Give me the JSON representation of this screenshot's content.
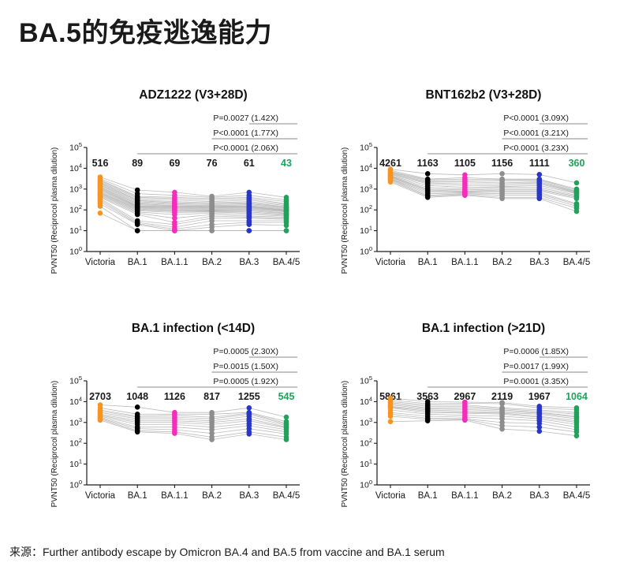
{
  "page": {
    "title": "BA.5的免疫逃逸能力",
    "source_note": "来源：Further antibody escape by Omicron BA.4 and BA.5 from vaccine and BA.1 serum"
  },
  "chart_config": {
    "categories": [
      "Victoria",
      "BA.1",
      "BA.1.1",
      "BA.2",
      "BA.3",
      "BA.4/5"
    ],
    "category_colors": [
      "#F8941D",
      "#000000",
      "#F62CBC",
      "#8E8E8E",
      "#2836C9",
      "#21A15B"
    ],
    "ylabel": "PVNT50 (Reciprocol plasma dilution)",
    "yticks": [
      "10^0",
      "10^1",
      "10^2",
      "10^3",
      "10^4",
      "10^5"
    ],
    "yscale": "log10",
    "ylim": [
      1,
      100000
    ],
    "gmt_highlight_color": "#21A15B",
    "gmt_text_color": "#1a1a1a",
    "line_color": "#999999",
    "sig_line_color": "#8A8A8A",
    "axis_color": "#1a1a1a"
  },
  "chart_data": [
    {
      "type": "scatter",
      "subtype": "paired-dot-line",
      "title": "ADZ1222 (V3+28D)",
      "categories": [
        "Victoria",
        "BA.1",
        "BA.1.1",
        "BA.2",
        "BA.3",
        "BA.4/5"
      ],
      "geometric_means": [
        516,
        89,
        69,
        76,
        61,
        43
      ],
      "significance": [
        {
          "label": "P=0.0027 (1.42X)",
          "from": 4,
          "to": 5
        },
        {
          "label": "P<0.0001 (1.77X)",
          "from": 3,
          "to": 5
        },
        {
          "label": "P<0.0001 (2.06X)",
          "from": 1,
          "to": 5
        }
      ],
      "subjects": [
        [
          3800,
          900,
          700,
          450,
          700,
          400
        ],
        [
          3200,
          600,
          500,
          400,
          500,
          300
        ],
        [
          2800,
          450,
          400,
          350,
          400,
          250
        ],
        [
          2500,
          400,
          350,
          300,
          350,
          200
        ],
        [
          2200,
          350,
          300,
          250,
          300,
          180
        ],
        [
          2000,
          300,
          250,
          220,
          250,
          160
        ],
        [
          1800,
          280,
          220,
          200,
          220,
          140
        ],
        [
          1600,
          250,
          200,
          180,
          200,
          130
        ],
        [
          1500,
          220,
          180,
          160,
          180,
          120
        ],
        [
          1300,
          200,
          160,
          150,
          160,
          110
        ],
        [
          1200,
          180,
          150,
          140,
          150,
          100
        ],
        [
          1100,
          160,
          140,
          130,
          140,
          95
        ],
        [
          1000,
          150,
          130,
          120,
          130,
          90
        ],
        [
          900,
          140,
          120,
          110,
          120,
          85
        ],
        [
          800,
          130,
          110,
          100,
          110,
          80
        ],
        [
          700,
          120,
          100,
          95,
          100,
          70
        ],
        [
          650,
          110,
          90,
          90,
          90,
          65
        ],
        [
          600,
          100,
          85,
          85,
          80,
          60
        ],
        [
          550,
          90,
          75,
          80,
          70,
          55
        ],
        [
          500,
          80,
          60,
          70,
          60,
          50
        ],
        [
          450,
          70,
          40,
          60,
          50,
          45
        ],
        [
          400,
          60,
          25,
          50,
          45,
          40
        ],
        [
          350,
          30,
          20,
          40,
          40,
          35
        ],
        [
          300,
          25,
          15,
          30,
          30,
          30
        ],
        [
          250,
          22,
          12,
          20,
          25,
          25
        ],
        [
          200,
          20,
          10,
          15,
          20,
          18
        ],
        [
          150,
          10,
          10,
          10,
          10,
          10
        ],
        [
          70,
          10,
          10,
          10,
          10,
          10
        ]
      ]
    },
    {
      "type": "scatter",
      "subtype": "paired-dot-line",
      "title": "BNT162b2 (V3+28D)",
      "categories": [
        "Victoria",
        "BA.1",
        "BA.1.1",
        "BA.2",
        "BA.3",
        "BA.4/5"
      ],
      "geometric_means": [
        4261,
        1163,
        1105,
        1156,
        1111,
        360
      ],
      "significance": [
        {
          "label": "P<0.0001 (3.09X)",
          "from": 4,
          "to": 5
        },
        {
          "label": "P<0.0001 (3.21X)",
          "from": 3,
          "to": 5
        },
        {
          "label": "P<0.0001 (3.23X)",
          "from": 1,
          "to": 5
        }
      ],
      "subjects": [
        [
          9000,
          5500,
          4800,
          5500,
          5000,
          2000
        ],
        [
          8000,
          3000,
          3500,
          3000,
          3000,
          1000
        ],
        [
          7000,
          2800,
          3000,
          2800,
          2800,
          900
        ],
        [
          6500,
          2500,
          2500,
          2500,
          2500,
          800
        ],
        [
          6000,
          2200,
          2200,
          2000,
          2200,
          750
        ],
        [
          5500,
          2000,
          1800,
          1800,
          2000,
          700
        ],
        [
          5000,
          1800,
          1500,
          1500,
          1800,
          650
        ],
        [
          4500,
          1500,
          1200,
          1300,
          1500,
          600
        ],
        [
          4200,
          1200,
          1000,
          1200,
          1200,
          500
        ],
        [
          4000,
          1000,
          900,
          1000,
          1000,
          450
        ],
        [
          3800,
          900,
          800,
          900,
          900,
          400
        ],
        [
          3500,
          800,
          750,
          800,
          800,
          350
        ],
        [
          3200,
          700,
          700,
          700,
          700,
          200
        ],
        [
          3000,
          600,
          650,
          600,
          600,
          180
        ],
        [
          2800,
          500,
          600,
          500,
          500,
          150
        ],
        [
          2500,
          450,
          550,
          400,
          400,
          120
        ],
        [
          2200,
          400,
          500,
          350,
          350,
          85
        ]
      ]
    },
    {
      "type": "scatter",
      "subtype": "paired-dot-line",
      "title": "BA.1 infection (<14D)",
      "categories": [
        "Victoria",
        "BA.1",
        "BA.1.1",
        "BA.2",
        "BA.3",
        "BA.4/5"
      ],
      "geometric_means": [
        2703,
        1048,
        1126,
        817,
        1255,
        545
      ],
      "significance": [
        {
          "label": "P=0.0005 (2.30X)",
          "from": 4,
          "to": 5
        },
        {
          "label": "P=0.0015 (1.50X)",
          "from": 3,
          "to": 5
        },
        {
          "label": "P=0.0005 (1.92X)",
          "from": 1,
          "to": 5
        }
      ],
      "subjects": [
        [
          7000,
          5500,
          3000,
          3000,
          5000,
          1800
        ],
        [
          5000,
          2500,
          2500,
          2500,
          3000,
          1100
        ],
        [
          4000,
          2000,
          2200,
          1800,
          2800,
          900
        ],
        [
          3500,
          1800,
          1800,
          1500,
          2500,
          800
        ],
        [
          3000,
          1500,
          1500,
          1200,
          2000,
          700
        ],
        [
          2500,
          1200,
          1200,
          1000,
          1500,
          600
        ],
        [
          2200,
          1000,
          1000,
          800,
          1200,
          550
        ],
        [
          2000,
          800,
          800,
          600,
          900,
          450
        ],
        [
          1800,
          600,
          600,
          450,
          700,
          350
        ],
        [
          1600,
          500,
          450,
          300,
          500,
          280
        ],
        [
          1500,
          400,
          350,
          200,
          350,
          200
        ],
        [
          1300,
          350,
          300,
          150,
          280,
          150
        ]
      ]
    },
    {
      "type": "scatter",
      "subtype": "paired-dot-line",
      "title": "BA.1 infection (>21D)",
      "categories": [
        "Victoria",
        "BA.1",
        "BA.1.1",
        "BA.2",
        "BA.3",
        "BA.4/5"
      ],
      "geometric_means": [
        5861,
        3563,
        2967,
        2119,
        1967,
        1064
      ],
      "significance": [
        {
          "label": "P=0.0006 (1.85X)",
          "from": 4,
          "to": 5
        },
        {
          "label": "P=0.0017 (1.99X)",
          "from": 3,
          "to": 5
        },
        {
          "label": "P=0.0001 (3.35X)",
          "from": 1,
          "to": 5
        }
      ],
      "subjects": [
        [
          15000,
          10000,
          9500,
          9000,
          6000,
          5000
        ],
        [
          12000,
          8000,
          8500,
          8000,
          5000,
          4000
        ],
        [
          10000,
          7000,
          7000,
          5000,
          4000,
          3000
        ],
        [
          9000,
          6000,
          6000,
          4500,
          3500,
          2500
        ],
        [
          8000,
          5000,
          5000,
          4000,
          3000,
          2000
        ],
        [
          7000,
          4500,
          4200,
          3500,
          2800,
          1800
        ],
        [
          6000,
          4000,
          3500,
          3000,
          2500,
          1500
        ],
        [
          5500,
          3500,
          3000,
          2800,
          2000,
          1200
        ],
        [
          5000,
          3000,
          2800,
          2500,
          1800,
          1000
        ],
        [
          4000,
          2500,
          2200,
          2000,
          1500,
          800
        ],
        [
          3000,
          2000,
          1800,
          1500,
          1200,
          600
        ],
        [
          2500,
          1600,
          1500,
          1000,
          900,
          450
        ],
        [
          2000,
          1400,
          1400,
          700,
          600,
          350
        ],
        [
          1100,
          1200,
          1300,
          480,
          380,
          230
        ]
      ]
    }
  ]
}
